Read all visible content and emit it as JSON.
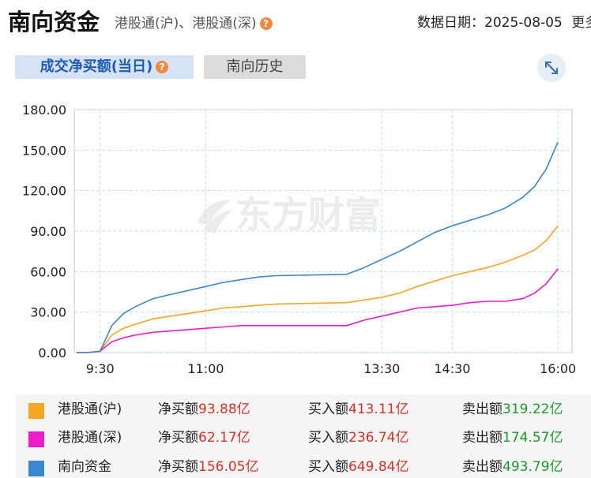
{
  "header": {
    "title": "南向资金",
    "subtitle": "港股通(沪)、港股通(深)",
    "date_label": "数据日期：",
    "date_value": "2025-08-05",
    "more_label": "更多"
  },
  "tabs": [
    {
      "label": "成交净买额(当日)",
      "active": true
    },
    {
      "label": "南向历史",
      "active": false
    }
  ],
  "watermark": "东方财富",
  "colors": {
    "sh": "#f5a623",
    "sz": "#ee1ccb",
    "total": "#3b86d0",
    "accent": "#1e5bb8",
    "positive": "#d93025",
    "negative_flow": "#1a9a2a"
  },
  "chart_data": {
    "type": "line",
    "title": "",
    "xlabel": "",
    "ylabel": "",
    "ylim": [
      0,
      180
    ],
    "y_ticks": [
      "0.00",
      "30.00",
      "60.00",
      "90.00",
      "120.00",
      "150.00",
      "180.00"
    ],
    "x_ticks": [
      "9:30",
      "11:00",
      "13:30",
      "14:30",
      "16:00"
    ],
    "grid": true,
    "x": [
      "09:10",
      "09:20",
      "09:30",
      "09:40",
      "09:50",
      "10:00",
      "10:15",
      "10:30",
      "10:45",
      "11:00",
      "11:15",
      "11:30",
      "11:45",
      "12:00",
      "13:00",
      "13:15",
      "13:30",
      "13:45",
      "14:00",
      "14:15",
      "14:30",
      "14:45",
      "15:00",
      "15:15",
      "15:30",
      "15:40",
      "15:50",
      "16:00"
    ],
    "series": [
      {
        "name": "港股通(沪)",
        "color": "#f5a623",
        "values": [
          0,
          0,
          1,
          13,
          18,
          21,
          25,
          27,
          29,
          31,
          33,
          34,
          35,
          36,
          37,
          39,
          41,
          44,
          49,
          53,
          57,
          60,
          63,
          67,
          72,
          76,
          83,
          93.88
        ]
      },
      {
        "name": "港股通(深)",
        "color": "#ee1ccb",
        "values": [
          0,
          0,
          1,
          8,
          11,
          13,
          15,
          16,
          17,
          18,
          19,
          20,
          20,
          20,
          20,
          24,
          27,
          30,
          33,
          34,
          35,
          37,
          38,
          38,
          40,
          44,
          51,
          62.17
        ]
      },
      {
        "name": "南向资金",
        "color": "#3b86d0",
        "values": [
          0,
          0,
          1,
          20,
          29,
          34,
          40,
          43,
          46,
          49,
          52,
          54,
          56,
          57,
          58,
          63,
          69,
          75,
          82,
          89,
          94,
          98,
          102,
          107,
          115,
          123,
          136,
          156.05
        ]
      }
    ]
  },
  "legend": [
    {
      "name": "港股通(沪)",
      "color": "#f5a623",
      "net_label": "净买额",
      "net_value": "93.88亿",
      "buy_label": "买入额",
      "buy_value": "413.11亿",
      "sell_label": "卖出额",
      "sell_value": "319.22亿"
    },
    {
      "name": "港股通(深)",
      "color": "#ee1ccb",
      "net_label": "净买额",
      "net_value": "62.17亿",
      "buy_label": "买入额",
      "buy_value": "236.74亿",
      "sell_label": "卖出额",
      "sell_value": "174.57亿"
    },
    {
      "name": "南向资金",
      "color": "#3b86d0",
      "net_label": "净买额",
      "net_value": "156.05亿",
      "buy_label": "买入额",
      "buy_value": "649.84亿",
      "sell_label": "卖出额",
      "sell_value": "493.79亿"
    }
  ]
}
